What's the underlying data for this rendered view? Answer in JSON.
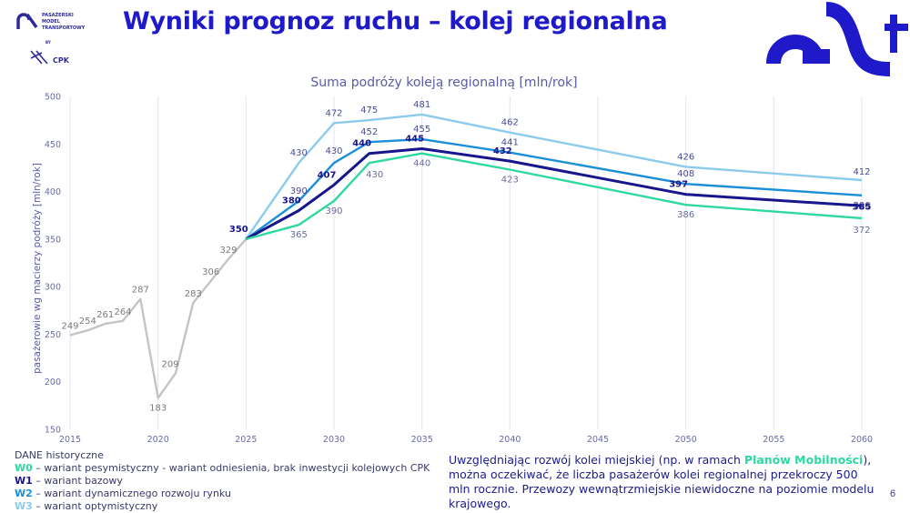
{
  "slide": {
    "title": "Wyniki prognoz ruchu – kolej regionalna",
    "logo_lines": [
      "PASAŻERSKI",
      "MODEL",
      "TRANSPORTOWY"
    ],
    "logo_by": "BY",
    "logo_cpk": "CPK",
    "page_number": "6"
  },
  "legend": {
    "historic": "DANE historyczne",
    "items": [
      {
        "code": "W0",
        "text": " – wariant pesymistyczny - wariant odniesienia, brak inwestycji kolejowych CPK",
        "color": "#2ed8a0"
      },
      {
        "code": "W1",
        "text": " – wariant bazowy",
        "color": "#17168c"
      },
      {
        "code": "W2",
        "text": " – wariant dynamicznego rozwoju rynku",
        "color": "#1a8fd8"
      },
      {
        "code": "W3",
        "text": " – wariant optymistyczny",
        "color": "#8ccbee"
      }
    ]
  },
  "note": {
    "before": "Uwzględniając rozwój kolei miejskiej (np. w ramach ",
    "highlight": "Planów Mobilności",
    "after": "), można oczekiwać, że liczba pasażerów kolei regionalnej przekroczy 500 mln rocznie. Przewozy wewnątrzmiejskie niewidoczne na poziomie modelu krajowego."
  },
  "chart_data": {
    "type": "line",
    "title": "Suma podróży koleją regionalną [mln/rok]",
    "ylabel": "pasażerowie wg macierzy podróży [mln/rok]",
    "xlabel": "",
    "xlim": [
      2015,
      2060
    ],
    "ylim": [
      150,
      500
    ],
    "xticks": [
      2015,
      2020,
      2025,
      2030,
      2035,
      2040,
      2045,
      2050,
      2055,
      2060
    ],
    "yticks": [
      150,
      200,
      250,
      300,
      350,
      400,
      450,
      500
    ],
    "grid": "vertical",
    "series": [
      {
        "name": "DANE historyczne",
        "color": "#c4c4c4",
        "points": [
          [
            2015,
            249
          ],
          [
            2016,
            254
          ],
          [
            2017,
            261
          ],
          [
            2018,
            264
          ],
          [
            2019,
            287
          ],
          [
            2020,
            183
          ],
          [
            2021,
            209
          ],
          [
            2022,
            283
          ],
          [
            2023,
            306
          ],
          [
            2024,
            329
          ],
          [
            2025,
            350
          ]
        ],
        "labels": [
          {
            "x": 2015,
            "y": 249,
            "text": "249"
          },
          {
            "x": 2016,
            "y": 254,
            "text": "254"
          },
          {
            "x": 2017,
            "y": 261,
            "text": "261"
          },
          {
            "x": 2018,
            "y": 264,
            "text": "264"
          },
          {
            "x": 2019,
            "y": 287,
            "text": "287"
          },
          {
            "x": 2020,
            "y": 183,
            "text": "183"
          },
          {
            "x": 2021,
            "y": 209,
            "text": "209"
          },
          {
            "x": 2022,
            "y": 283,
            "text": "283"
          },
          {
            "x": 2023,
            "y": 306,
            "text": "306"
          },
          {
            "x": 2024,
            "y": 329,
            "text": "329"
          }
        ]
      },
      {
        "name": "W3",
        "color": "#8ccbee",
        "points": [
          [
            2025,
            350
          ],
          [
            2028,
            430
          ],
          [
            2030,
            472
          ],
          [
            2032,
            475
          ],
          [
            2035,
            481
          ],
          [
            2040,
            462
          ],
          [
            2050,
            426
          ],
          [
            2060,
            412
          ]
        ],
        "labels": [
          {
            "x": 2028,
            "y": 430,
            "text": "430"
          },
          {
            "x": 2030,
            "y": 472,
            "text": "472"
          },
          {
            "x": 2032,
            "y": 475,
            "text": "475"
          },
          {
            "x": 2035,
            "y": 481,
            "text": "481"
          },
          {
            "x": 2040,
            "y": 462,
            "text": "462"
          },
          {
            "x": 2050,
            "y": 426,
            "text": "426"
          },
          {
            "x": 2060,
            "y": 412,
            "text": "412"
          }
        ]
      },
      {
        "name": "W2",
        "color": "#1a8fd8",
        "points": [
          [
            2025,
            350
          ],
          [
            2028,
            390
          ],
          [
            2030,
            430
          ],
          [
            2032,
            452
          ],
          [
            2035,
            455
          ],
          [
            2040,
            441
          ],
          [
            2050,
            408
          ],
          [
            2060,
            396
          ]
        ],
        "labels": [
          {
            "x": 2028,
            "y": 390,
            "text": "390"
          },
          {
            "x": 2030,
            "y": 430,
            "text": "430"
          },
          {
            "x": 2032,
            "y": 452,
            "text": "452"
          },
          {
            "x": 2035,
            "y": 455,
            "text": "455"
          },
          {
            "x": 2040,
            "y": 441,
            "text": "441"
          },
          {
            "x": 2050,
            "y": 408,
            "text": "408"
          },
          {
            "x": 2060,
            "y": 396,
            "text": "396"
          }
        ]
      },
      {
        "name": "W1",
        "color": "#17168c",
        "bold": true,
        "points": [
          [
            2025,
            350
          ],
          [
            2028,
            380
          ],
          [
            2030,
            407
          ],
          [
            2032,
            440
          ],
          [
            2035,
            445
          ],
          [
            2040,
            432
          ],
          [
            2050,
            397
          ],
          [
            2060,
            385
          ]
        ],
        "labels": [
          {
            "x": 2025,
            "y": 350,
            "text": "350"
          },
          {
            "x": 2028,
            "y": 380,
            "text": "380"
          },
          {
            "x": 2030,
            "y": 407,
            "text": "407"
          },
          {
            "x": 2032,
            "y": 440,
            "text": "440"
          },
          {
            "x": 2035,
            "y": 445,
            "text": "445"
          },
          {
            "x": 2040,
            "y": 432,
            "text": "432"
          },
          {
            "x": 2050,
            "y": 397,
            "text": "397"
          },
          {
            "x": 2060,
            "y": 385,
            "text": "385"
          }
        ]
      },
      {
        "name": "W0",
        "color": "#2ed8a0",
        "points": [
          [
            2025,
            350
          ],
          [
            2028,
            365
          ],
          [
            2030,
            390
          ],
          [
            2032,
            430
          ],
          [
            2035,
            440
          ],
          [
            2040,
            423
          ],
          [
            2050,
            386
          ],
          [
            2060,
            372
          ]
        ],
        "labels": [
          {
            "x": 2028,
            "y": 365,
            "text": "365"
          },
          {
            "x": 2030,
            "y": 390,
            "text": "390"
          },
          {
            "x": 2032,
            "y": 430,
            "text": "430"
          },
          {
            "x": 2035,
            "y": 440,
            "text": "440"
          },
          {
            "x": 2040,
            "y": 423,
            "text": "423"
          },
          {
            "x": 2050,
            "y": 386,
            "text": "386"
          },
          {
            "x": 2060,
            "y": 372,
            "text": "372"
          }
        ]
      }
    ]
  }
}
